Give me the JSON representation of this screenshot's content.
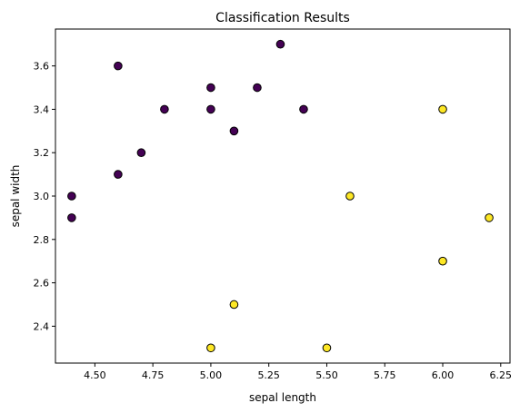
{
  "chart_data": {
    "type": "scatter",
    "title": "Classification Results",
    "xlabel": "sepal length",
    "ylabel": "sepal width",
    "xlim": [
      4.33,
      6.29
    ],
    "ylim": [
      2.23,
      3.77
    ],
    "xticks": [
      4.5,
      4.75,
      5.0,
      5.25,
      5.5,
      5.75,
      6.0,
      6.25
    ],
    "xtick_labels": [
      "4.50",
      "4.75",
      "5.00",
      "5.25",
      "5.50",
      "5.75",
      "6.00",
      "6.25"
    ],
    "yticks": [
      2.4,
      2.6,
      2.8,
      3.0,
      3.2,
      3.4,
      3.6
    ],
    "ytick_labels": [
      "2.4",
      "2.6",
      "2.8",
      "3.0",
      "3.2",
      "3.4",
      "3.6"
    ],
    "grid": false,
    "series": [
      {
        "color": "#440154",
        "points": [
          [
            4.4,
            3.0
          ],
          [
            4.4,
            2.9
          ],
          [
            4.6,
            3.6
          ],
          [
            4.6,
            3.1
          ],
          [
            4.7,
            3.2
          ],
          [
            4.8,
            3.4
          ],
          [
            5.0,
            3.5
          ],
          [
            5.0,
            3.4
          ],
          [
            5.1,
            3.3
          ],
          [
            5.2,
            3.5
          ],
          [
            5.3,
            3.7
          ],
          [
            5.4,
            3.4
          ]
        ]
      },
      {
        "color": "#fde725",
        "points": [
          [
            5.0,
            2.3
          ],
          [
            5.1,
            2.5
          ],
          [
            5.5,
            2.3
          ],
          [
            5.6,
            3.0
          ],
          [
            6.0,
            3.4
          ],
          [
            6.0,
            2.7
          ],
          [
            6.2,
            2.9
          ]
        ]
      }
    ],
    "marker_edge_color": "#000000"
  }
}
